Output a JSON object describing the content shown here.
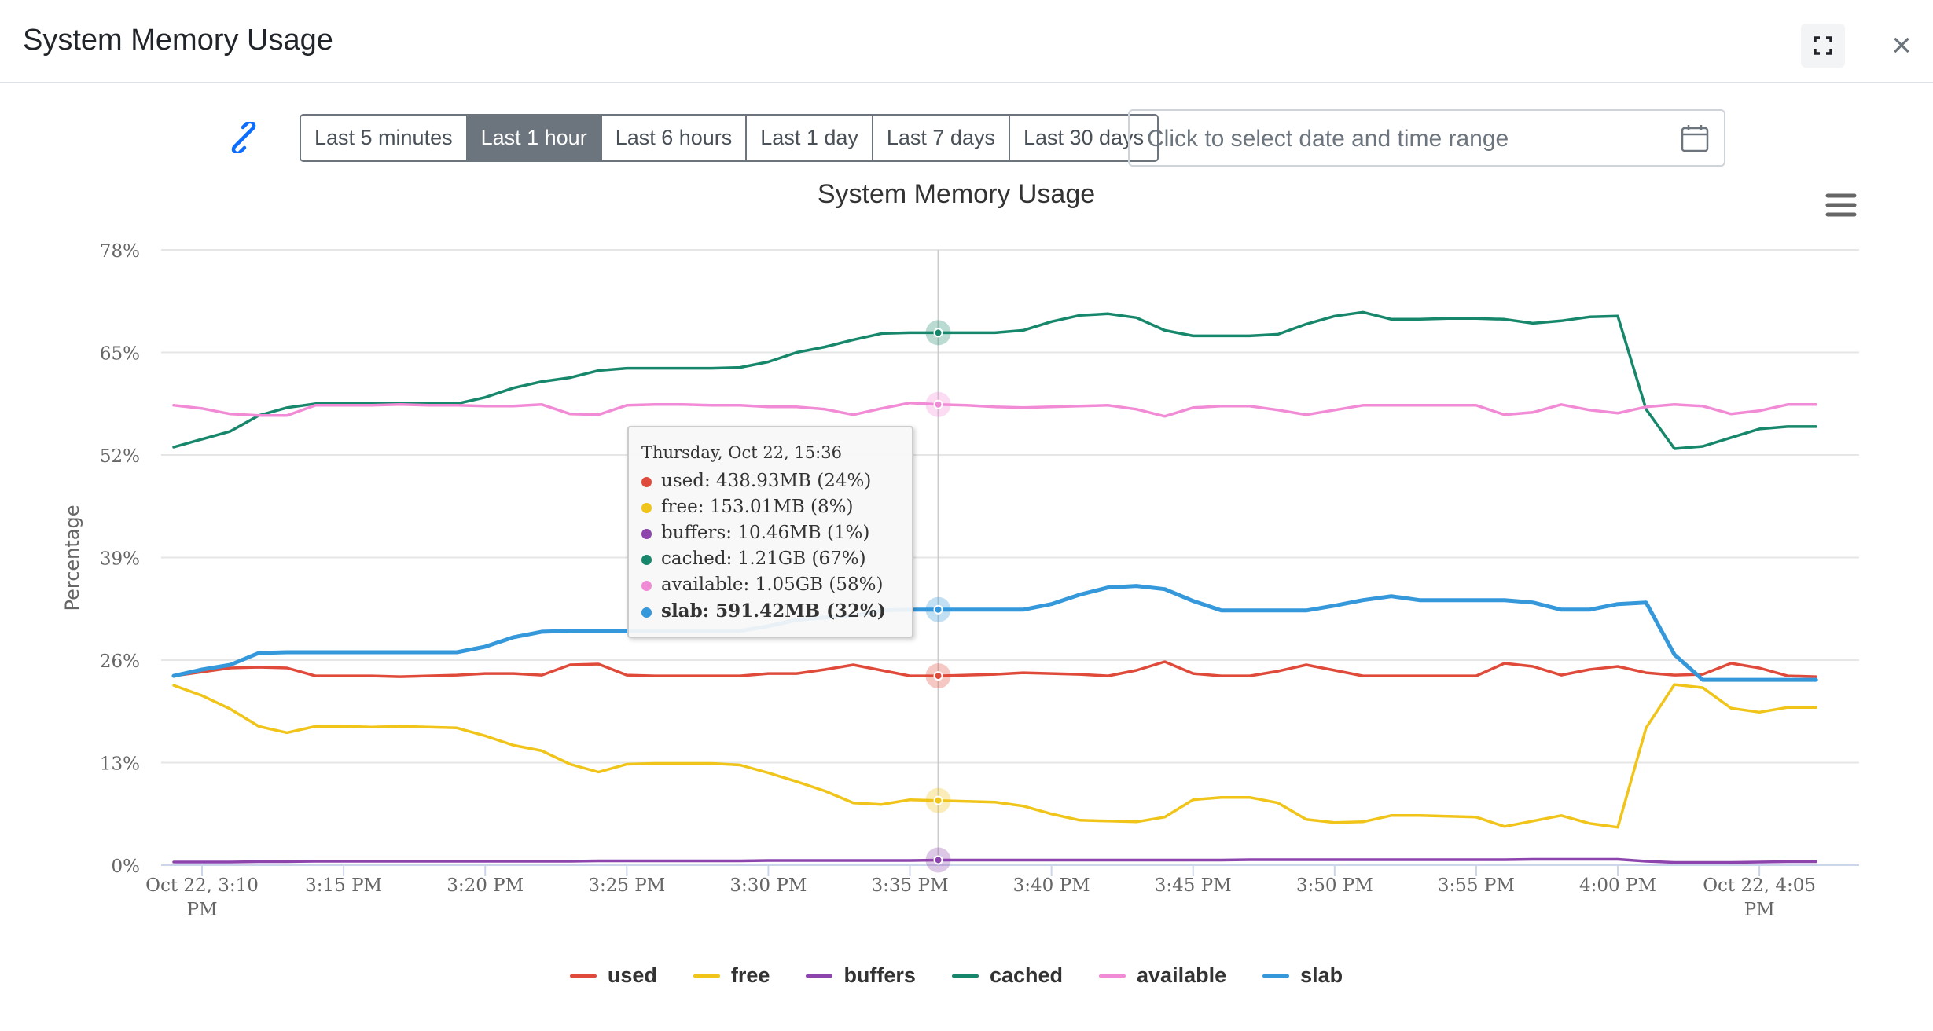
{
  "modal": {
    "title": "System Memory Usage"
  },
  "controls": {
    "ranges": [
      {
        "label": "Last 5 minutes",
        "active": false
      },
      {
        "label": "Last 1 hour",
        "active": true
      },
      {
        "label": "Last 6 hours",
        "active": false
      },
      {
        "label": "Last 1 day",
        "active": false
      },
      {
        "label": "Last 7 days",
        "active": false
      },
      {
        "label": "Last 30 days",
        "active": false
      }
    ],
    "date_placeholder": "Click to select date and time range"
  },
  "icons": {
    "link": "link-icon",
    "calendar": "calendar-icon",
    "fullscreen": "fullscreen-icon",
    "close": "close-icon",
    "menu": "hamburger-menu-icon"
  },
  "close_glyph": "×",
  "tooltip": {
    "header": "Thursday, Oct 22, 15:36",
    "rows": [
      {
        "text": "used: 438.93MB (24%)",
        "color": "#e04a3a"
      },
      {
        "text": "free: 153.01MB (8%)",
        "color": "#f0c419"
      },
      {
        "text": "buffers: 10.46MB (1%)",
        "color": "#8e44ad"
      },
      {
        "text": "cached: 1.21GB (67%)",
        "color": "#16876b"
      },
      {
        "text": "available: 1.05GB (58%)",
        "color": "#f28bd6"
      },
      {
        "text": "slab: 591.42MB (32%)",
        "color": "#3498db"
      }
    ]
  },
  "chart_data": {
    "type": "line",
    "title": "System Memory Usage",
    "ylabel": "Percentage",
    "xlabel": "",
    "ylim": [
      0,
      78
    ],
    "yticks": [
      0,
      13,
      26,
      39,
      52,
      65,
      78
    ],
    "ytick_labels": [
      "0%",
      "13%",
      "26%",
      "39%",
      "52%",
      "65%",
      "78%"
    ],
    "x_start": "15:09",
    "x_step_minutes": 1,
    "xticks": [
      {
        "minute": 1,
        "label": "Oct 22, 3:10 PM"
      },
      {
        "minute": 6,
        "label": "3:15 PM"
      },
      {
        "minute": 11,
        "label": "3:20 PM"
      },
      {
        "minute": 16,
        "label": "3:25 PM"
      },
      {
        "minute": 21,
        "label": "3:30 PM"
      },
      {
        "minute": 26,
        "label": "3:35 PM"
      },
      {
        "minute": 31,
        "label": "3:40 PM"
      },
      {
        "minute": 36,
        "label": "3:45 PM"
      },
      {
        "minute": 41,
        "label": "3:50 PM"
      },
      {
        "minute": 46,
        "label": "3:55 PM"
      },
      {
        "minute": 51,
        "label": "4:00 PM"
      },
      {
        "minute": 56,
        "label": "Oct 22, 4:05 PM"
      }
    ],
    "crosshair_minute": 27,
    "legend_position": "bottom",
    "series": [
      {
        "name": "used",
        "color": "#e04a3a",
        "values": [
          24,
          24.5,
          25,
          25.1,
          25,
          24,
          24,
          24,
          23.9,
          24,
          24.1,
          24.3,
          24.3,
          24.1,
          25.4,
          25.5,
          24.1,
          24,
          24,
          24,
          24,
          24.3,
          24.3,
          24.8,
          25.4,
          24.7,
          24,
          24,
          24.1,
          24.2,
          24.4,
          24.3,
          24.2,
          24,
          24.7,
          25.8,
          24.3,
          24,
          24,
          24.6,
          25.4,
          24.7,
          24,
          24,
          24,
          24,
          24,
          25.6,
          25.2,
          24.1,
          24.8,
          25.2,
          24.4,
          24.1,
          24.2,
          25.6,
          25,
          24,
          23.9
        ]
      },
      {
        "name": "free",
        "color": "#f0c419",
        "values": [
          22.8,
          21.5,
          19.8,
          17.6,
          16.8,
          17.6,
          17.6,
          17.5,
          17.6,
          17.5,
          17.4,
          16.4,
          15.2,
          14.5,
          12.8,
          11.8,
          12.8,
          12.9,
          12.9,
          12.9,
          12.7,
          11.7,
          10.6,
          9.4,
          7.9,
          7.7,
          8.3,
          8.2,
          8.1,
          8,
          7.5,
          6.5,
          5.7,
          5.6,
          5.5,
          6.1,
          8.3,
          8.6,
          8.6,
          7.9,
          5.8,
          5.4,
          5.5,
          6.3,
          6.3,
          6.2,
          6.1,
          4.9,
          5.6,
          6.3,
          5.3,
          4.8,
          17.4,
          22.9,
          22.5,
          19.9,
          19.4,
          20,
          20
        ]
      },
      {
        "name": "buffers",
        "color": "#8e44ad",
        "values": [
          0.4,
          0.4,
          0.4,
          0.45,
          0.45,
          0.5,
          0.5,
          0.5,
          0.5,
          0.5,
          0.5,
          0.5,
          0.5,
          0.5,
          0.5,
          0.55,
          0.55,
          0.55,
          0.55,
          0.55,
          0.55,
          0.6,
          0.6,
          0.6,
          0.6,
          0.6,
          0.6,
          0.65,
          0.65,
          0.65,
          0.65,
          0.65,
          0.65,
          0.65,
          0.65,
          0.65,
          0.65,
          0.65,
          0.7,
          0.7,
          0.7,
          0.7,
          0.7,
          0.7,
          0.7,
          0.7,
          0.7,
          0.7,
          0.75,
          0.75,
          0.75,
          0.75,
          0.5,
          0.35,
          0.35,
          0.35,
          0.4,
          0.45,
          0.45
        ]
      },
      {
        "name": "cached",
        "color": "#16876b",
        "values": [
          53,
          54,
          55,
          57,
          58,
          58.5,
          58.5,
          58.5,
          58.5,
          58.5,
          58.5,
          59.3,
          60.5,
          61.3,
          61.8,
          62.7,
          63,
          63,
          63,
          63,
          63.1,
          63.8,
          65,
          65.7,
          66.6,
          67.4,
          67.5,
          67.5,
          67.5,
          67.5,
          67.8,
          68.9,
          69.7,
          69.9,
          69.4,
          67.8,
          67.1,
          67.1,
          67.1,
          67.3,
          68.6,
          69.6,
          70.1,
          69.2,
          69.2,
          69.3,
          69.3,
          69.2,
          68.7,
          69,
          69.5,
          69.6,
          57.8,
          52.8,
          53.1,
          54.2,
          55.3,
          55.6,
          55.6
        ]
      },
      {
        "name": "available",
        "color": "#f28bd6",
        "values": [
          58.3,
          57.9,
          57.2,
          57,
          57,
          58.3,
          58.3,
          58.3,
          58.4,
          58.3,
          58.3,
          58.2,
          58.2,
          58.4,
          57.2,
          57.1,
          58.3,
          58.4,
          58.4,
          58.3,
          58.3,
          58.1,
          58.1,
          57.8,
          57.1,
          57.9,
          58.6,
          58.4,
          58.3,
          58.1,
          58,
          58.1,
          58.2,
          58.3,
          57.8,
          56.9,
          58,
          58.2,
          58.2,
          57.7,
          57.1,
          57.7,
          58.3,
          58.3,
          58.3,
          58.3,
          58.3,
          57.1,
          57.4,
          58.4,
          57.7,
          57.3,
          58.1,
          58.4,
          58.2,
          57.2,
          57.6,
          58.4,
          58.4
        ]
      },
      {
        "name": "slab",
        "color": "#3498db",
        "values": [
          24,
          24.8,
          25.4,
          26.9,
          27,
          27,
          27,
          27,
          27,
          27,
          27,
          27.7,
          28.9,
          29.6,
          29.7,
          29.7,
          29.7,
          29.7,
          29.7,
          29.7,
          29.7,
          30.3,
          31.1,
          31.4,
          31.6,
          32.3,
          32.4,
          32.4,
          32.4,
          32.4,
          32.4,
          33.1,
          34.3,
          35.2,
          35.4,
          35,
          33.5,
          32.3,
          32.3,
          32.3,
          32.3,
          32.9,
          33.6,
          34.1,
          33.6,
          33.6,
          33.6,
          33.6,
          33.3,
          32.4,
          32.4,
          33.1,
          33.3,
          26.7,
          23.5,
          23.5,
          23.5,
          23.5,
          23.5
        ]
      }
    ]
  }
}
